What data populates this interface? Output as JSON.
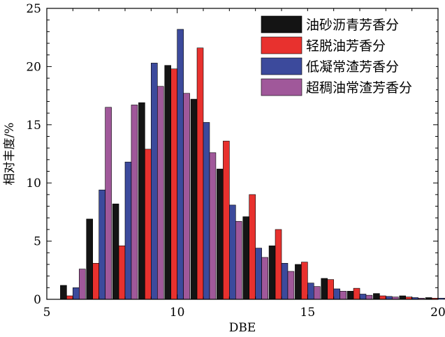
{
  "chart_data": {
    "type": "bar",
    "title": "",
    "xlabel": "DBE",
    "ylabel": "相对丰度/%",
    "xlim": [
      5,
      20
    ],
    "ylim": [
      0,
      25
    ],
    "xticks": [
      5,
      10,
      15,
      20
    ],
    "yticks": [
      0,
      5,
      10,
      15,
      20,
      25
    ],
    "grid": false,
    "legend_position": "top-right",
    "x": [
      6,
      7,
      8,
      9,
      10,
      11,
      12,
      13,
      14,
      15,
      16,
      17,
      18,
      19,
      20
    ],
    "series": [
      {
        "name": "油砂沥青芳香分",
        "color": "#141414",
        "values": [
          1.2,
          6.9,
          8.2,
          16.9,
          20.1,
          17.2,
          11.2,
          7.1,
          4.6,
          3.0,
          1.8,
          0.7,
          0.5,
          0.3,
          0.15
        ]
      },
      {
        "name": "轻脱油芳香分",
        "color": "#e8312e",
        "values": [
          0.3,
          3.1,
          4.6,
          12.9,
          19.8,
          21.6,
          13.6,
          9.0,
          6.0,
          3.2,
          1.7,
          0.95,
          0.3,
          0.2,
          0.1
        ]
      },
      {
        "name": "低凝常渣芳香分",
        "color": "#3c4a9c",
        "values": [
          1.0,
          9.4,
          11.8,
          20.3,
          23.2,
          15.2,
          8.1,
          4.4,
          3.1,
          1.4,
          0.9,
          0.45,
          0.25,
          0.15,
          0.1
        ]
      },
      {
        "name": "超稠油常渣芳香分",
        "color": "#a0589a",
        "values": [
          2.6,
          16.5,
          16.7,
          18.3,
          17.7,
          12.6,
          6.7,
          3.6,
          2.4,
          1.1,
          0.7,
          0.35,
          0.2,
          0.1,
          0.1
        ]
      }
    ]
  }
}
